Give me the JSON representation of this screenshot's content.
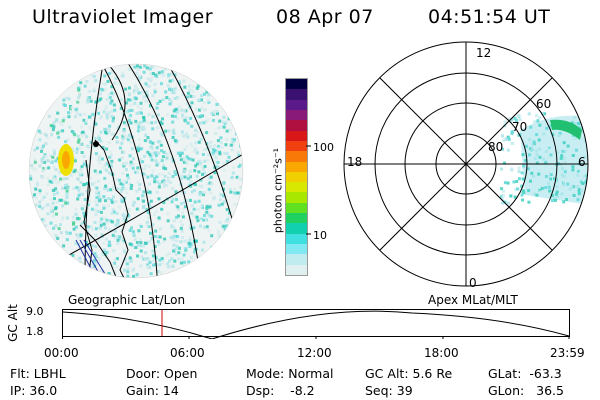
{
  "header": {
    "instrument": "Ultraviolet Imager",
    "date": "08 Apr 07",
    "time": "04:51:54 UT"
  },
  "colorbar": {
    "unit_label": "photon cm⁻²s⁻¹",
    "ticks": [
      "100",
      "10"
    ],
    "colors": [
      "#000040",
      "#3a1070",
      "#5a1a8a",
      "#8a1a7a",
      "#b01040",
      "#d81818",
      "#f04010",
      "#f87808",
      "#f8a800",
      "#f0d000",
      "#d8e800",
      "#a8e800",
      "#60e020",
      "#20d060",
      "#10d0b0",
      "#40e0e0",
      "#80e8f0",
      "#c0ecf0",
      "#e0f0f0"
    ]
  },
  "left_panel": {
    "label": "Geographic Lat/Lon"
  },
  "right_panel": {
    "label": "Apex MLat/MLT",
    "lat_labels": [
      "80",
      "70",
      "60"
    ],
    "mlt_labels": {
      "top": "12",
      "left": "18",
      "right": "6",
      "bottom": "0"
    }
  },
  "altitude_plot": {
    "axis_label": "GC Alt",
    "y_ticks": [
      "9.0",
      "1.8"
    ],
    "x_ticks": [
      "00:00",
      "06:00",
      "12:00",
      "18:00",
      "23:59"
    ]
  },
  "info": {
    "flt": "Flt: LBHL",
    "ip": "IP: 36.0",
    "door": "Door: Open",
    "gain": "Gain: 14",
    "mode": "Mode: Normal",
    "dsp": "Dsp:    -8.2",
    "gc_alt": "GC Alt: 5.6 Re",
    "seq": "Seq: 39",
    "glat": "GLat:  -63.3",
    "glon": "GLon:   36.5"
  }
}
